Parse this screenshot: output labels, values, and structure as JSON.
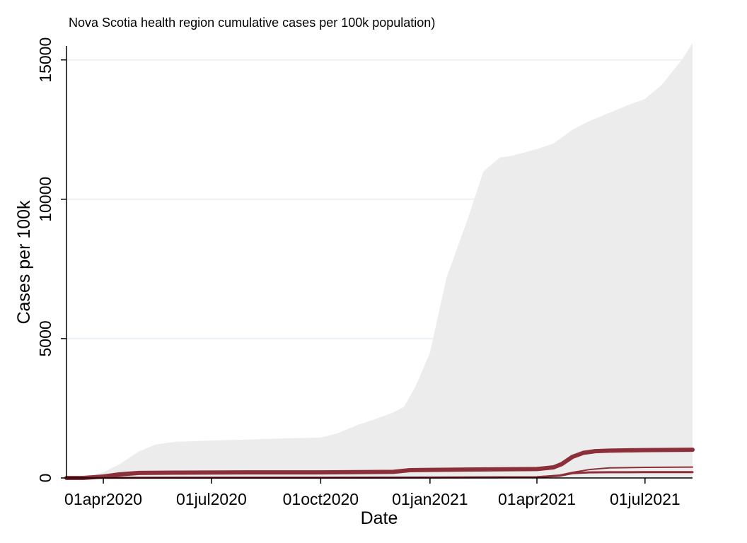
{
  "chart_data": {
    "type": "area",
    "title": "Nova Scotia health region cumulative cases per 100k population)",
    "xlabel": "Date",
    "ylabel": "Cases per 100k",
    "x_ticks": [
      "01apr2020",
      "01jul2020",
      "01oct2020",
      "01jan2021",
      "01apr2021",
      "01jul2021"
    ],
    "x_tick_dates": [
      "2020-04-01",
      "2020-07-01",
      "2020-10-01",
      "2021-01-01",
      "2021-04-01",
      "2021-07-01"
    ],
    "x_range": [
      "2020-03-01",
      "2021-08-10"
    ],
    "y_ticks": [
      0,
      5000,
      10000,
      15000
    ],
    "ylim": [
      0,
      15500
    ],
    "grid": true,
    "colors": {
      "background_area": "#ececec",
      "series": "#8c2f39",
      "grid": "#eaf0f3"
    },
    "background_series": {
      "x": [
        "2020-03-01",
        "2020-03-15",
        "2020-04-01",
        "2020-04-15",
        "2020-05-01",
        "2020-05-15",
        "2020-06-01",
        "2020-06-15",
        "2020-07-01",
        "2020-08-01",
        "2020-09-01",
        "2020-10-01",
        "2020-10-15",
        "2020-11-01",
        "2020-11-15",
        "2020-12-01",
        "2020-12-10",
        "2020-12-20",
        "2021-01-01",
        "2021-01-15",
        "2021-02-01",
        "2021-02-15",
        "2021-03-01",
        "2021-03-10",
        "2021-04-01",
        "2021-04-15",
        "2021-05-01",
        "2021-05-15",
        "2021-06-01",
        "2021-06-15",
        "2021-07-01",
        "2021-07-15",
        "2021-08-01",
        "2021-08-10"
      ],
      "values": [
        0,
        20,
        200,
        500,
        950,
        1200,
        1300,
        1320,
        1340,
        1380,
        1420,
        1450,
        1600,
        1900,
        2100,
        2350,
        2550,
        3300,
        4500,
        7200,
        9200,
        11000,
        11500,
        11550,
        11800,
        12000,
        12500,
        12800,
        13100,
        13350,
        13600,
        14100,
        15000,
        15600
      ]
    },
    "series": [
      {
        "x": [
          "2020-03-01",
          "2020-03-15",
          "2020-04-01",
          "2020-04-15",
          "2020-05-01",
          "2020-06-01",
          "2020-08-01",
          "2020-10-01",
          "2020-11-01",
          "2020-12-01",
          "2020-12-15",
          "2021-01-01",
          "2021-02-01",
          "2021-03-01",
          "2021-04-01",
          "2021-04-15",
          "2021-04-22",
          "2021-05-01",
          "2021-05-10",
          "2021-05-20",
          "2021-06-01",
          "2021-07-01",
          "2021-08-10"
        ],
        "values": [
          0,
          0,
          50,
          130,
          180,
          190,
          200,
          200,
          210,
          220,
          280,
          290,
          300,
          310,
          320,
          380,
          500,
          760,
          900,
          960,
          980,
          1000,
          1010
        ]
      },
      {
        "x": [
          "2020-03-01",
          "2020-04-01",
          "2020-07-01",
          "2020-10-01",
          "2021-01-01",
          "2021-04-01",
          "2021-04-20",
          "2021-05-01",
          "2021-05-15",
          "2021-06-01",
          "2021-07-01",
          "2021-08-10"
        ],
        "values": [
          0,
          10,
          15,
          15,
          20,
          40,
          100,
          200,
          300,
          360,
          380,
          390
        ]
      },
      {
        "x": [
          "2020-03-01",
          "2020-04-01",
          "2020-07-01",
          "2020-10-01",
          "2021-01-01",
          "2021-04-01",
          "2021-04-20",
          "2021-05-01",
          "2021-05-15",
          "2021-06-01",
          "2021-07-01",
          "2021-08-10"
        ],
        "values": [
          0,
          5,
          10,
          10,
          15,
          30,
          80,
          170,
          200,
          205,
          208,
          210
        ]
      }
    ]
  }
}
